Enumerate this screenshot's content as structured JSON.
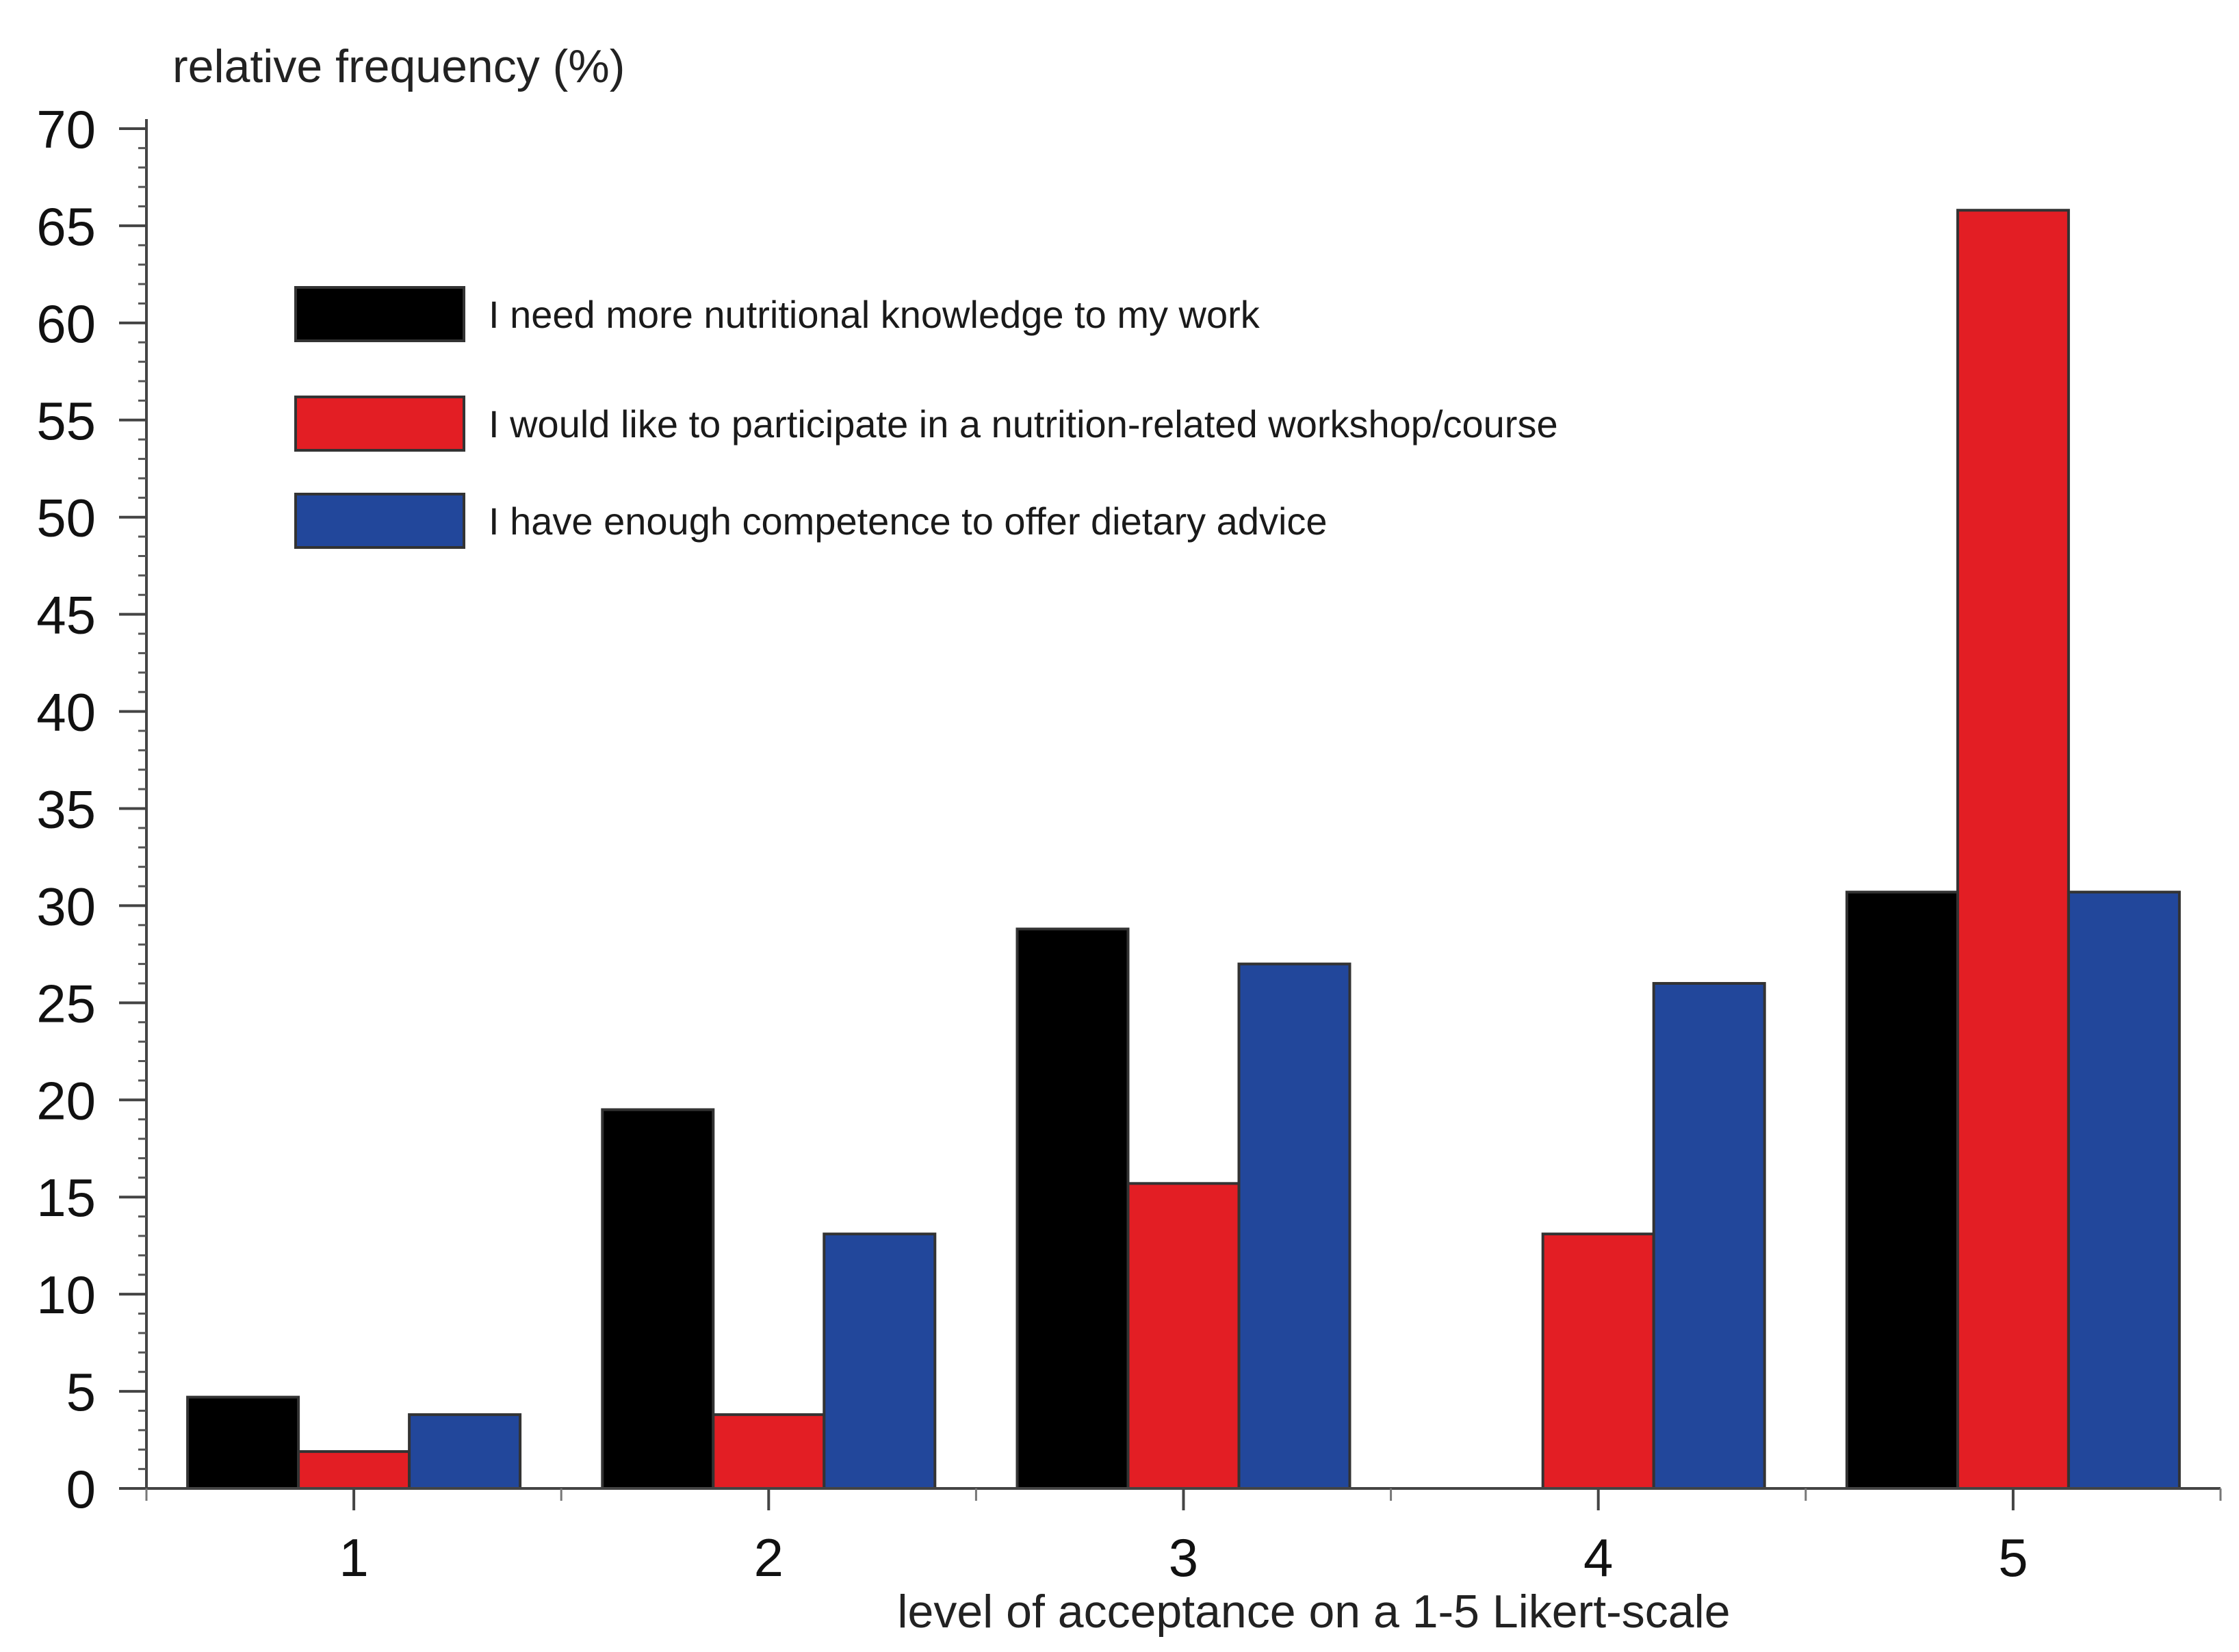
{
  "chart_data": {
    "type": "bar",
    "title": "",
    "ylabel": "relative frequency (%)",
    "xlabel": "level of acceptance on a 1-5 Likert-scale",
    "categories": [
      "1",
      "2",
      "3",
      "4",
      "5"
    ],
    "ylim": [
      0,
      70
    ],
    "yticks": [
      0,
      5,
      10,
      15,
      20,
      25,
      30,
      35,
      40,
      45,
      50,
      55,
      60,
      65,
      70
    ],
    "ytick_labels": [
      "0",
      "5",
      "10",
      "15",
      "20",
      "25",
      "30",
      "35",
      "40",
      "45",
      "50",
      "55",
      "60",
      "65",
      "70"
    ],
    "grid": false,
    "legend_position": "top-left",
    "series": [
      {
        "name": "I need more nutritional knowledge to my work",
        "color": "#000000",
        "values": [
          4.7,
          19.5,
          28.8,
          0,
          30.7
        ]
      },
      {
        "name": "I would like to participate in a nutrition-related workshop/course",
        "color": "#e31e24",
        "values": [
          1.9,
          3.8,
          15.7,
          13.1,
          65.8
        ]
      },
      {
        "name": "I have enough competence to offer dietary advice",
        "color": "#22479b",
        "values": [
          3.8,
          13.1,
          27.0,
          26.0,
          30.7
        ]
      }
    ]
  }
}
